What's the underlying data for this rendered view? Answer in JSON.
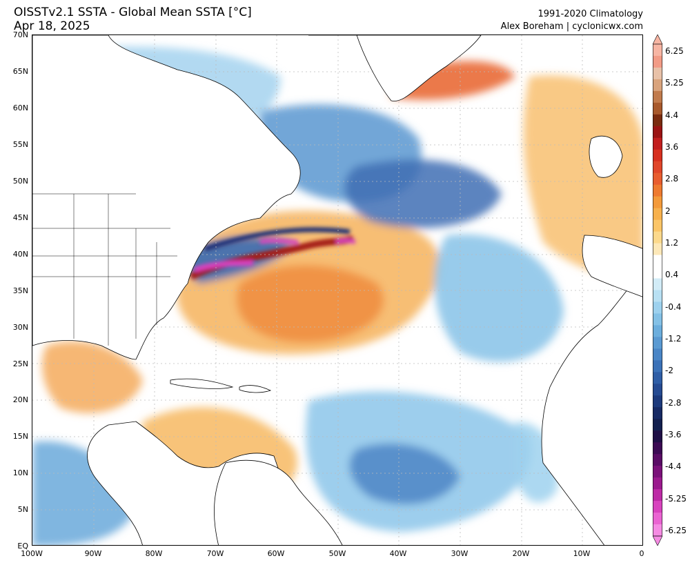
{
  "header": {
    "title": "OISSTv2.1 SSTA - Global Mean SSTA [°C]",
    "date": "Apr 18, 2025",
    "climatology": "1991-2020 Climatology",
    "credit": "Alex Boreham | cyclonicwx.com"
  },
  "map": {
    "region": "North Atlantic",
    "lat_labels": [
      "70N",
      "65N",
      "60N",
      "55N",
      "50N",
      "45N",
      "40N",
      "35N",
      "30N",
      "25N",
      "20N",
      "15N",
      "10N",
      "5N",
      "EQ"
    ],
    "lon_labels": [
      "100W",
      "90W",
      "80W",
      "70W",
      "60W",
      "50W",
      "40W",
      "30W",
      "20W",
      "10W",
      "0"
    ]
  },
  "colorbar": {
    "labels": [
      "6.25",
      "5.25",
      "4.4",
      "3.6",
      "2.8",
      "2",
      "1.2",
      "0.4",
      "-0.4",
      "-1.2",
      "-2",
      "-2.8",
      "-3.6",
      "-4.4",
      "-5.25",
      "-6.25"
    ],
    "colors": [
      "#f7b5a3",
      "#f29b86",
      "#e8c1a8",
      "#d9a37c",
      "#c17b4d",
      "#a8592c",
      "#7a2c10",
      "#9b1414",
      "#c21e1e",
      "#d7301f",
      "#e0462a",
      "#e85d2f",
      "#ee7a30",
      "#f39a3a",
      "#f7b14d",
      "#fbc567",
      "#fcd98c",
      "#fde8b8",
      "#ffffff",
      "#ffffff",
      "#d2ecf7",
      "#b8e0f3",
      "#9dd1ee",
      "#84c1e6",
      "#6caedd",
      "#5a9ad2",
      "#4a86c6",
      "#3b72b8",
      "#2f5ea6",
      "#264b92",
      "#1d3a7c",
      "#172a64",
      "#13204f",
      "#1f0f46",
      "#3c0a54",
      "#5a0c66",
      "#7b117a",
      "#9b1a8e",
      "#bd2ba6",
      "#d843be",
      "#ea64d2",
      "#f58be3"
    ],
    "colormap_note": "blue = negative anomaly, orange/red = positive anomaly, magenta = extreme negative"
  }
}
